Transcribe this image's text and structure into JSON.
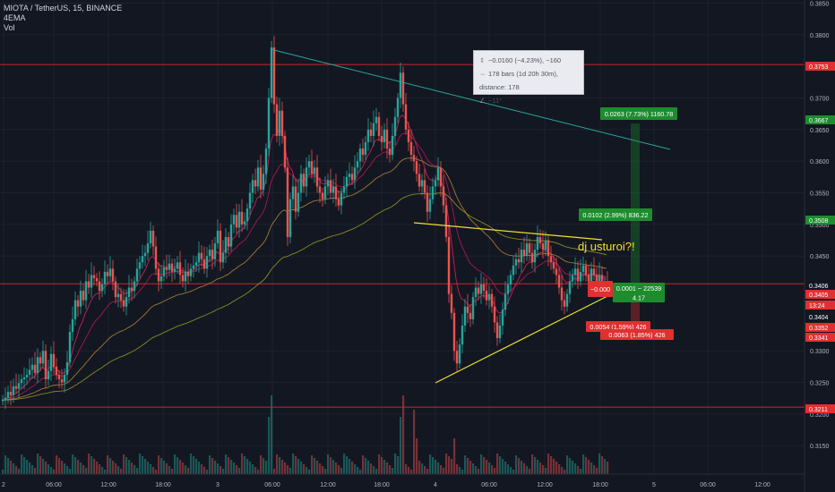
{
  "header": {
    "symbol_line": "MIOTA / TetherUS, 15, BINANCE",
    "indicator_ema": "4EMA",
    "indicator_vol": "Vol"
  },
  "measure": {
    "line1": "−0.0160 (−4.23%), −160",
    "line2": "178 bars (1d 20h 30m), distance: 178",
    "line3": "−11°"
  },
  "annotation": "dj usturoi?!",
  "colors": {
    "background": "#131722",
    "up": "#26a69a",
    "down": "#ef5350",
    "green_label": "#1e8c2e",
    "red_label": "#e03030",
    "hline": "#c62828",
    "yellow": "#f0e030"
  },
  "chart_data": {
    "type": "candlestick",
    "symbol": "MIOTA / TetherUS",
    "interval": "15",
    "exchange": "BINANCE",
    "ylim": [
      0.3105,
      0.3855
    ],
    "y_ticks": [
      "0.3850",
      "0.3800",
      "0.3700",
      "0.3650",
      "0.3600",
      "0.3550",
      "0.3500",
      "0.3450",
      "0.3300",
      "0.3250",
      "0.3200",
      "0.3150"
    ],
    "x_ticks": [
      "2",
      "06:00",
      "12:00",
      "18:00",
      "3",
      "06:00",
      "12:00",
      "18:00",
      "4",
      "06:00",
      "12:00",
      "18:00",
      "5",
      "06:00",
      "12:00"
    ],
    "price_labels": [
      {
        "text": "0.3753",
        "color": "#e03030"
      },
      {
        "text": "0.3667",
        "color": "#1e8c2e"
      },
      {
        "text": "0.3508",
        "color": "#1e8c2e"
      },
      {
        "text": "0.3406",
        "color": "#ffffff"
      },
      {
        "text": "0.3405",
        "color": "#e03030"
      },
      {
        "text": "13:24",
        "color": "#e03030"
      },
      {
        "text": "0.3404",
        "color": "#ffffff"
      },
      {
        "text": "0.3352",
        "color": "#e03030"
      },
      {
        "text": "0.3341",
        "color": "#e03030"
      },
      {
        "text": "0.3211",
        "color": "#e03030"
      }
    ],
    "horizontal_lines": [
      0.3753,
      0.3406,
      0.3211
    ],
    "candles": [
      {
        "t": 0,
        "c": 0.3222
      },
      {
        "t": 3,
        "c": 0.3226
      },
      {
        "t": 6,
        "c": 0.3235
      },
      {
        "t": 9,
        "c": 0.323
      },
      {
        "t": 12,
        "c": 0.3244
      },
      {
        "t": 15,
        "c": 0.324
      },
      {
        "t": 18,
        "c": 0.3249
      },
      {
        "t": 21,
        "c": 0.3255
      },
      {
        "t": 24,
        "c": 0.3258
      },
      {
        "t": 27,
        "c": 0.3262
      },
      {
        "t": 30,
        "c": 0.327
      },
      {
        "t": 33,
        "c": 0.3278
      },
      {
        "t": 36,
        "c": 0.3265
      },
      {
        "t": 39,
        "c": 0.329
      },
      {
        "t": 42,
        "c": 0.328
      },
      {
        "t": 45,
        "c": 0.33
      },
      {
        "t": 48,
        "c": 0.3255
      },
      {
        "t": 51,
        "c": 0.3268
      },
      {
        "t": 54,
        "c": 0.3295
      },
      {
        "t": 57,
        "c": 0.3275
      },
      {
        "t": 60,
        "c": 0.3262
      },
      {
        "t": 63,
        "c": 0.3255
      },
      {
        "t": 66,
        "c": 0.325
      },
      {
        "t": 69,
        "c": 0.3262
      },
      {
        "t": 72,
        "c": 0.3282
      },
      {
        "t": 75,
        "c": 0.333
      },
      {
        "t": 78,
        "c": 0.335
      },
      {
        "t": 81,
        "c": 0.338
      },
      {
        "t": 84,
        "c": 0.337
      },
      {
        "t": 87,
        "c": 0.3395
      },
      {
        "t": 90,
        "c": 0.338
      },
      {
        "t": 93,
        "c": 0.341
      },
      {
        "t": 96,
        "c": 0.34
      },
      {
        "t": 99,
        "c": 0.342
      },
      {
        "t": 102,
        "c": 0.3415
      },
      {
        "t": 105,
        "c": 0.341
      },
      {
        "t": 108,
        "c": 0.3395
      },
      {
        "t": 111,
        "c": 0.3405
      },
      {
        "t": 114,
        "c": 0.3425
      },
      {
        "t": 117,
        "c": 0.3418
      },
      {
        "t": 120,
        "c": 0.343
      },
      {
        "t": 123,
        "c": 0.341
      },
      {
        "t": 126,
        "c": 0.3385
      },
      {
        "t": 129,
        "c": 0.339
      },
      {
        "t": 132,
        "c": 0.338
      },
      {
        "t": 135,
        "c": 0.337
      },
      {
        "t": 138,
        "c": 0.3385
      },
      {
        "t": 141,
        "c": 0.34
      },
      {
        "t": 144,
        "c": 0.3395
      },
      {
        "t": 147,
        "c": 0.341
      },
      {
        "t": 150,
        "c": 0.343
      },
      {
        "t": 153,
        "c": 0.344
      },
      {
        "t": 156,
        "c": 0.345
      },
      {
        "t": 159,
        "c": 0.3455
      },
      {
        "t": 162,
        "c": 0.347
      },
      {
        "t": 165,
        "c": 0.349
      },
      {
        "t": 168,
        "c": 0.3465
      },
      {
        "t": 171,
        "c": 0.343
      },
      {
        "t": 174,
        "c": 0.341
      },
      {
        "t": 177,
        "c": 0.3418
      },
      {
        "t": 180,
        "c": 0.3432
      },
      {
        "t": 183,
        "c": 0.3428
      },
      {
        "t": 186,
        "c": 0.3438
      },
      {
        "t": 189,
        "c": 0.3425
      },
      {
        "t": 192,
        "c": 0.343
      },
      {
        "t": 195,
        "c": 0.344
      },
      {
        "t": 198,
        "c": 0.342
      },
      {
        "t": 201,
        "c": 0.341
      },
      {
        "t": 204,
        "c": 0.3425
      },
      {
        "t": 207,
        "c": 0.3418
      },
      {
        "t": 210,
        "c": 0.343
      },
      {
        "t": 213,
        "c": 0.3435
      },
      {
        "t": 216,
        "c": 0.344
      },
      {
        "t": 219,
        "c": 0.3455
      },
      {
        "t": 222,
        "c": 0.3445
      },
      {
        "t": 225,
        "c": 0.343
      },
      {
        "t": 228,
        "c": 0.345
      },
      {
        "t": 231,
        "c": 0.346
      },
      {
        "t": 234,
        "c": 0.3445
      },
      {
        "t": 237,
        "c": 0.347
      },
      {
        "t": 240,
        "c": 0.349
      },
      {
        "t": 243,
        "c": 0.344
      },
      {
        "t": 246,
        "c": 0.3455
      },
      {
        "t": 249,
        "c": 0.348
      },
      {
        "t": 252,
        "c": 0.3465
      },
      {
        "t": 255,
        "c": 0.35
      },
      {
        "t": 258,
        "c": 0.3515
      },
      {
        "t": 261,
        "c": 0.3495
      },
      {
        "t": 264,
        "c": 0.352
      },
      {
        "t": 267,
        "c": 0.35
      },
      {
        "t": 270,
        "c": 0.3505
      },
      {
        "t": 273,
        "c": 0.3525
      },
      {
        "t": 276,
        "c": 0.355
      },
      {
        "t": 279,
        "c": 0.357
      },
      {
        "t": 282,
        "c": 0.356
      },
      {
        "t": 285,
        "c": 0.359
      },
      {
        "t": 288,
        "c": 0.3555
      },
      {
        "t": 291,
        "c": 0.358
      },
      {
        "t": 294,
        "c": 0.362
      },
      {
        "t": 297,
        "c": 0.37
      },
      {
        "t": 300,
        "c": 0.378
      },
      {
        "t": 303,
        "c": 0.369
      },
      {
        "t": 306,
        "c": 0.364
      },
      {
        "t": 309,
        "c": 0.368
      },
      {
        "t": 312,
        "c": 0.364
      },
      {
        "t": 315,
        "c": 0.359
      },
      {
        "t": 318,
        "c": 0.348
      },
      {
        "t": 321,
        "c": 0.354
      },
      {
        "t": 324,
        "c": 0.356
      },
      {
        "t": 327,
        "c": 0.352
      },
      {
        "t": 330,
        "c": 0.355
      },
      {
        "t": 333,
        "c": 0.358
      },
      {
        "t": 336,
        "c": 0.356
      },
      {
        "t": 339,
        "c": 0.359
      },
      {
        "t": 342,
        "c": 0.36
      },
      {
        "t": 345,
        "c": 0.358
      },
      {
        "t": 348,
        "c": 0.359
      },
      {
        "t": 351,
        "c": 0.356
      },
      {
        "t": 354,
        "c": 0.355
      },
      {
        "t": 357,
        "c": 0.354
      },
      {
        "t": 360,
        "c": 0.356
      },
      {
        "t": 363,
        "c": 0.357
      },
      {
        "t": 366,
        "c": 0.355
      },
      {
        "t": 369,
        "c": 0.356
      },
      {
        "t": 372,
        "c": 0.354
      },
      {
        "t": 375,
        "c": 0.353
      },
      {
        "t": 378,
        "c": 0.355
      },
      {
        "t": 381,
        "c": 0.356
      },
      {
        "t": 384,
        "c": 0.3575
      },
      {
        "t": 387,
        "c": 0.358
      },
      {
        "t": 390,
        "c": 0.357
      },
      {
        "t": 393,
        "c": 0.359
      },
      {
        "t": 396,
        "c": 0.36
      },
      {
        "t": 399,
        "c": 0.362
      },
      {
        "t": 402,
        "c": 0.361
      },
      {
        "t": 405,
        "c": 0.363
      },
      {
        "t": 408,
        "c": 0.365
      },
      {
        "t": 411,
        "c": 0.364
      },
      {
        "t": 414,
        "c": 0.366
      },
      {
        "t": 417,
        "c": 0.367
      },
      {
        "t": 420,
        "c": 0.364
      },
      {
        "t": 423,
        "c": 0.363
      },
      {
        "t": 426,
        "c": 0.365
      },
      {
        "t": 429,
        "c": 0.362
      },
      {
        "t": 432,
        "c": 0.361
      },
      {
        "t": 435,
        "c": 0.364
      },
      {
        "t": 438,
        "c": 0.367
      },
      {
        "t": 441,
        "c": 0.37
      },
      {
        "t": 444,
        "c": 0.374
      },
      {
        "t": 447,
        "c": 0.369
      },
      {
        "t": 450,
        "c": 0.365
      },
      {
        "t": 453,
        "c": 0.363
      },
      {
        "t": 456,
        "c": 0.361
      },
      {
        "t": 459,
        "c": 0.36
      },
      {
        "t": 462,
        "c": 0.358
      },
      {
        "t": 465,
        "c": 0.356
      },
      {
        "t": 468,
        "c": 0.357
      },
      {
        "t": 471,
        "c": 0.355
      },
      {
        "t": 474,
        "c": 0.352
      },
      {
        "t": 477,
        "c": 0.354
      },
      {
        "t": 480,
        "c": 0.356
      },
      {
        "t": 483,
        "c": 0.357
      },
      {
        "t": 486,
        "c": 0.359
      },
      {
        "t": 489,
        "c": 0.356
      },
      {
        "t": 492,
        "c": 0.353
      },
      {
        "t": 495,
        "c": 0.348
      },
      {
        "t": 498,
        "c": 0.339
      },
      {
        "t": 501,
        "c": 0.336
      },
      {
        "t": 504,
        "c": 0.33
      },
      {
        "t": 507,
        "c": 0.328
      },
      {
        "t": 510,
        "c": 0.331
      },
      {
        "t": 513,
        "c": 0.334
      },
      {
        "t": 516,
        "c": 0.337
      },
      {
        "t": 519,
        "c": 0.336
      },
      {
        "t": 522,
        "c": 0.335
      },
      {
        "t": 525,
        "c": 0.3385
      },
      {
        "t": 528,
        "c": 0.34
      },
      {
        "t": 531,
        "c": 0.339
      },
      {
        "t": 534,
        "c": 0.3405
      },
      {
        "t": 537,
        "c": 0.3395
      },
      {
        "t": 540,
        "c": 0.338
      },
      {
        "t": 543,
        "c": 0.339
      },
      {
        "t": 546,
        "c": 0.337
      },
      {
        "t": 549,
        "c": 0.3345
      },
      {
        "t": 552,
        "c": 0.332
      },
      {
        "t": 555,
        "c": 0.334
      },
      {
        "t": 558,
        "c": 0.3365
      },
      {
        "t": 561,
        "c": 0.339
      },
      {
        "t": 564,
        "c": 0.3405
      },
      {
        "t": 567,
        "c": 0.342
      },
      {
        "t": 570,
        "c": 0.3435
      },
      {
        "t": 573,
        "c": 0.3445
      },
      {
        "t": 576,
        "c": 0.344
      },
      {
        "t": 579,
        "c": 0.346
      },
      {
        "t": 582,
        "c": 0.345
      },
      {
        "t": 585,
        "c": 0.347
      },
      {
        "t": 588,
        "c": 0.3455
      },
      {
        "t": 591,
        "c": 0.344
      },
      {
        "t": 594,
        "c": 0.346
      },
      {
        "t": 597,
        "c": 0.348
      },
      {
        "t": 600,
        "c": 0.347
      },
      {
        "t": 603,
        "c": 0.346
      },
      {
        "t": 606,
        "c": 0.3475
      },
      {
        "t": 609,
        "c": 0.345
      },
      {
        "t": 612,
        "c": 0.344
      },
      {
        "t": 615,
        "c": 0.343
      },
      {
        "t": 618,
        "c": 0.342
      },
      {
        "t": 621,
        "c": 0.34
      },
      {
        "t": 624,
        "c": 0.338
      },
      {
        "t": 627,
        "c": 0.337
      },
      {
        "t": 630,
        "c": 0.339
      },
      {
        "t": 633,
        "c": 0.341
      },
      {
        "t": 636,
        "c": 0.342
      },
      {
        "t": 639,
        "c": 0.343
      },
      {
        "t": 642,
        "c": 0.341
      },
      {
        "t": 645,
        "c": 0.3425
      },
      {
        "t": 648,
        "c": 0.3435
      },
      {
        "t": 651,
        "c": 0.342
      },
      {
        "t": 654,
        "c": 0.341
      },
      {
        "t": 657,
        "c": 0.343
      },
      {
        "t": 660,
        "c": 0.342
      },
      {
        "t": 663,
        "c": 0.341
      },
      {
        "t": 666,
        "c": 0.342
      },
      {
        "t": 669,
        "c": 0.3405
      },
      {
        "t": 672,
        "c": 0.341
      },
      {
        "t": 675,
        "c": 0.3405
      }
    ],
    "trade_labels": [
      {
        "text": "0.0263 (7.73%) 1160.78",
        "color": "#1e8c2e"
      },
      {
        "text": "0.0102 (2.99%) 836.22",
        "color": "#1e8c2e"
      },
      {
        "text": "0.0001 ~ 22539",
        "color": "#1e8c2e"
      },
      {
        "text": "4.17",
        "color": "#1e8c2e"
      },
      {
        "text": "−0.000",
        "color": "#e03030"
      },
      {
        "text": "0.0054 (1.59%) 426",
        "color": "#e03030"
      },
      {
        "text": "0.0063 (1.85%) 426",
        "color": "#e03030"
      }
    ]
  }
}
